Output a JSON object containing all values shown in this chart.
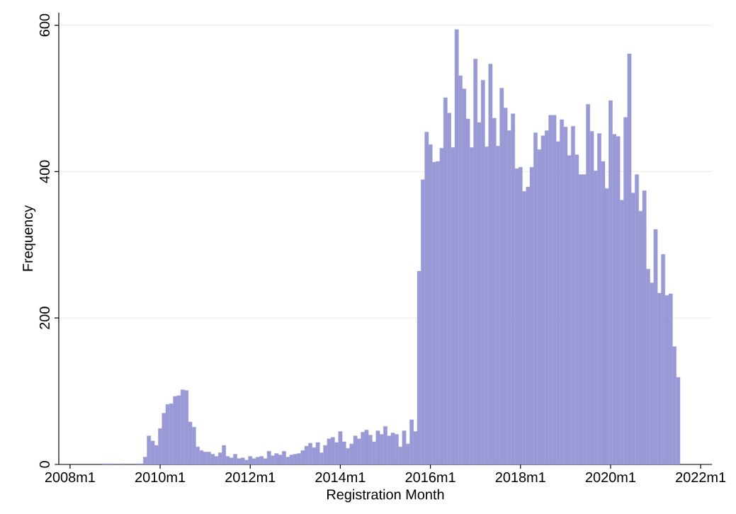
{
  "chart_data": {
    "type": "histogram",
    "xlabel": "Registration Month",
    "ylabel": "Frequency",
    "color": "#9999d6",
    "bins": [
      "2008-09-16",
      "2008-10-16",
      "2008-11-16",
      "2008-12-16",
      "2009-01-16",
      "2009-02-16",
      "2009-03-16",
      "2009-04-16",
      "2009-05-16",
      "2009-06-16",
      "2009-07-16",
      "2009-08-16",
      "2009-09-16",
      "2009-10-16",
      "2009-11-16",
      "2009-12-16",
      "2010-01-16",
      "2010-02-16",
      "2010-03-16",
      "2010-04-16",
      "2010-05-16",
      "2010-06-16",
      "2010-07-16",
      "2010-08-16",
      "2010-09-16",
      "2010-10-16",
      "2010-11-16",
      "2010-12-16",
      "2011-01-16",
      "2011-02-16",
      "2011-03-16",
      "2011-04-16",
      "2011-05-16",
      "2011-06-16",
      "2011-07-16",
      "2011-08-16",
      "2011-09-16",
      "2011-10-16",
      "2011-11-16",
      "2011-12-16",
      "2012-01-16",
      "2012-02-16",
      "2012-03-16",
      "2012-04-16",
      "2012-05-16",
      "2012-06-16",
      "2012-07-16",
      "2012-08-16",
      "2012-09-16",
      "2012-10-16",
      "2012-11-16",
      "2012-12-16",
      "2013-01-16",
      "2013-02-16",
      "2013-03-16",
      "2013-04-16",
      "2013-05-16",
      "2013-06-16",
      "2013-07-16",
      "2013-08-16",
      "2013-09-16",
      "2013-10-16",
      "2013-11-16",
      "2013-12-16",
      "2014-01-16",
      "2014-02-16",
      "2014-03-16",
      "2014-04-16",
      "2014-05-16",
      "2014-06-16",
      "2014-07-16",
      "2014-08-16",
      "2014-09-16",
      "2014-10-16",
      "2014-11-16",
      "2014-12-16",
      "2015-01-16",
      "2015-02-16",
      "2015-03-16",
      "2015-04-16",
      "2015-05-16",
      "2015-06-16",
      "2015-07-16",
      "2015-08-16",
      "2015-09-16",
      "2015-10-16",
      "2015-11-16",
      "2015-12-16",
      "2016-01-16",
      "2016-02-16",
      "2016-03-16",
      "2016-04-16",
      "2016-05-16",
      "2016-06-16",
      "2016-07-16",
      "2016-08-16",
      "2016-09-16",
      "2016-10-16",
      "2016-11-16",
      "2016-12-16",
      "2017-01-16",
      "2017-02-16",
      "2017-03-16",
      "2017-04-16",
      "2017-05-16",
      "2017-06-16",
      "2017-07-16",
      "2017-08-16",
      "2017-09-16",
      "2017-10-16",
      "2017-11-16",
      "2017-12-16",
      "2018-01-16",
      "2018-02-16",
      "2018-03-16",
      "2018-04-16",
      "2018-05-16",
      "2018-06-16",
      "2018-07-16",
      "2018-08-16",
      "2018-09-16",
      "2018-10-16",
      "2018-11-16",
      "2018-12-16",
      "2019-01-16",
      "2019-02-16",
      "2019-03-16",
      "2019-04-16",
      "2019-05-16",
      "2019-06-16",
      "2019-07-16",
      "2019-08-16",
      "2019-09-16",
      "2019-10-16",
      "2019-11-16",
      "2019-12-16",
      "2020-01-16",
      "2020-02-16",
      "2020-03-16",
      "2020-04-16",
      "2020-05-16",
      "2020-06-16",
      "2020-07-16",
      "2020-08-16",
      "2020-09-16",
      "2020-10-16",
      "2020-11-16",
      "2020-12-16",
      "2021-01-16",
      "2021-02-16",
      "2021-03-16",
      "2021-04-16",
      "2021-05-16",
      "2021-06-16",
      "2021-07-16"
    ],
    "values": [
      1,
      1,
      1,
      0,
      0,
      1,
      0,
      0,
      0,
      1,
      1,
      10,
      39,
      32,
      26,
      49,
      70,
      82,
      83,
      93,
      94,
      102,
      101,
      58,
      51,
      24,
      19,
      17,
      17,
      14,
      11,
      16,
      26,
      11,
      9,
      14,
      8,
      9,
      6,
      11,
      8,
      10,
      11,
      8,
      18,
      12,
      15,
      13,
      18,
      10,
      13,
      14,
      15,
      19,
      25,
      29,
      23,
      30,
      16,
      26,
      35,
      37,
      30,
      45,
      31,
      22,
      28,
      39,
      35,
      44,
      47,
      40,
      31,
      46,
      41,
      52,
      39,
      43,
      41,
      24,
      46,
      28,
      61,
      45,
      264,
      389,
      454,
      437,
      413,
      414,
      432,
      501,
      480,
      433,
      594,
      531,
      513,
      472,
      433,
      554,
      467,
      525,
      434,
      547,
      473,
      435,
      514,
      487,
      456,
      479,
      404,
      406,
      373,
      379,
      406,
      453,
      430,
      449,
      456,
      477,
      477,
      441,
      471,
      461,
      422,
      462,
      423,
      396,
      396,
      492,
      455,
      401,
      452,
      414,
      377,
      497,
      451,
      448,
      361,
      474,
      561,
      371,
      396,
      346,
      374,
      267,
      248,
      321,
      234,
      287,
      231,
      233,
      161,
      119
    ],
    "xlim": [
      "2007-10-01",
      "2022-04-01"
    ],
    "ylim": [
      0,
      617
    ],
    "xticks": [
      {
        "value": "2008-01-01",
        "label": "2008m1"
      },
      {
        "value": "2010-01-01",
        "label": "2010m1"
      },
      {
        "value": "2012-01-01",
        "label": "2012m1"
      },
      {
        "value": "2014-01-01",
        "label": "2014m1"
      },
      {
        "value": "2016-01-01",
        "label": "2016m1"
      },
      {
        "value": "2018-01-01",
        "label": "2018m1"
      },
      {
        "value": "2020-01-01",
        "label": "2020m1"
      },
      {
        "value": "2022-01-01",
        "label": "2022m1"
      }
    ],
    "yticks": [
      0,
      200,
      400,
      600
    ],
    "grid": "y"
  }
}
